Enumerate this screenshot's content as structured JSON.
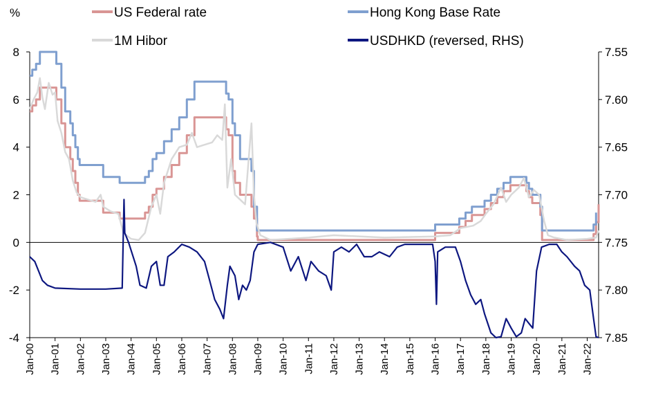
{
  "chart_data": {
    "type": "line",
    "left_axis_unit": "%",
    "left_axis": {
      "range": [
        -4,
        8
      ],
      "ticks": [
        "8",
        "6",
        "4",
        "2",
        "0",
        "-2",
        "-4"
      ]
    },
    "right_axis": {
      "range": [
        7.55,
        7.85
      ],
      "reversed": true,
      "ticks": [
        "7.55",
        "7.60",
        "7.65",
        "7.70",
        "7.75",
        "7.80",
        "7.85"
      ]
    },
    "x_ticks": [
      "Jan-00",
      "Jan-01",
      "Jan-02",
      "Jan-03",
      "Jan-04",
      "Jan-05",
      "Jan-06",
      "Jan-07",
      "Jan-08",
      "Jan-09",
      "Jan-10",
      "Jan-11",
      "Jan-12",
      "Jan-13",
      "Jan-14",
      "Jan-15",
      "Jan-16",
      "Jan-17",
      "Jan-18",
      "Jan-19",
      "Jan-20",
      "Jan-21",
      "Jan-22"
    ],
    "x_range": [
      2000.0,
      2022.45
    ],
    "grid": false,
    "legend": [
      {
        "name": "US Federal rate",
        "color": "#d99594"
      },
      {
        "name": "Hong Kong Base Rate",
        "color": "#7f9fcf"
      },
      {
        "name": "1M Hibor",
        "color": "#d9d9d9"
      },
      {
        "name": "USDHKD (reversed, RHS)",
        "color": "#0d1780"
      }
    ],
    "series": [
      {
        "name": "US Federal rate",
        "axis": "left",
        "color": "#d99594",
        "points": [
          [
            2000.0,
            5.5
          ],
          [
            2000.1,
            5.75
          ],
          [
            2000.25,
            6.0
          ],
          [
            2000.4,
            6.5
          ],
          [
            2001.0,
            6.5
          ],
          [
            2001.05,
            6.0
          ],
          [
            2001.25,
            5.0
          ],
          [
            2001.4,
            4.0
          ],
          [
            2001.6,
            3.5
          ],
          [
            2001.7,
            3.0
          ],
          [
            2001.8,
            2.5
          ],
          [
            2001.9,
            2.0
          ],
          [
            2001.97,
            1.75
          ],
          [
            2002.85,
            1.75
          ],
          [
            2002.9,
            1.25
          ],
          [
            2003.5,
            1.25
          ],
          [
            2003.55,
            1.0
          ],
          [
            2004.5,
            1.0
          ],
          [
            2004.55,
            1.25
          ],
          [
            2004.7,
            1.5
          ],
          [
            2004.85,
            2.0
          ],
          [
            2005.0,
            2.25
          ],
          [
            2005.3,
            2.75
          ],
          [
            2005.6,
            3.25
          ],
          [
            2005.9,
            3.75
          ],
          [
            2006.2,
            4.5
          ],
          [
            2006.5,
            5.25
          ],
          [
            2007.7,
            5.25
          ],
          [
            2007.75,
            4.75
          ],
          [
            2007.85,
            4.5
          ],
          [
            2008.0,
            3.0
          ],
          [
            2008.1,
            2.5
          ],
          [
            2008.3,
            2.0
          ],
          [
            2008.75,
            1.5
          ],
          [
            2008.85,
            1.0
          ],
          [
            2008.97,
            0.25
          ],
          [
            2009.0,
            0.1
          ],
          [
            2015.95,
            0.1
          ],
          [
            2016.0,
            0.4
          ],
          [
            2016.95,
            0.65
          ],
          [
            2017.2,
            0.9
          ],
          [
            2017.45,
            1.15
          ],
          [
            2017.95,
            1.4
          ],
          [
            2018.2,
            1.65
          ],
          [
            2018.45,
            1.9
          ],
          [
            2018.7,
            2.15
          ],
          [
            2018.97,
            2.4
          ],
          [
            2019.55,
            2.4
          ],
          [
            2019.6,
            2.15
          ],
          [
            2019.7,
            1.9
          ],
          [
            2019.83,
            1.65
          ],
          [
            2020.15,
            1.15
          ],
          [
            2020.22,
            0.1
          ],
          [
            2022.2,
            0.1
          ],
          [
            2022.25,
            0.35
          ],
          [
            2022.35,
            0.85
          ],
          [
            2022.45,
            1.6
          ]
        ]
      },
      {
        "name": "Hong Kong Base Rate",
        "axis": "left",
        "color": "#7f9fcf",
        "points": [
          [
            2000.0,
            7.0
          ],
          [
            2000.1,
            7.25
          ],
          [
            2000.25,
            7.5
          ],
          [
            2000.4,
            8.0
          ],
          [
            2001.0,
            8.0
          ],
          [
            2001.05,
            7.5
          ],
          [
            2001.25,
            6.5
          ],
          [
            2001.4,
            5.5
          ],
          [
            2001.6,
            5.0
          ],
          [
            2001.7,
            4.5
          ],
          [
            2001.8,
            4.0
          ],
          [
            2001.9,
            3.5
          ],
          [
            2001.97,
            3.25
          ],
          [
            2002.85,
            3.25
          ],
          [
            2002.9,
            2.75
          ],
          [
            2003.5,
            2.75
          ],
          [
            2003.55,
            2.5
          ],
          [
            2004.5,
            2.5
          ],
          [
            2004.55,
            2.75
          ],
          [
            2004.7,
            3.0
          ],
          [
            2004.85,
            3.5
          ],
          [
            2005.0,
            3.75
          ],
          [
            2005.3,
            4.25
          ],
          [
            2005.6,
            4.75
          ],
          [
            2005.9,
            5.25
          ],
          [
            2006.2,
            6.0
          ],
          [
            2006.5,
            6.75
          ],
          [
            2007.7,
            6.75
          ],
          [
            2007.75,
            6.25
          ],
          [
            2007.85,
            6.0
          ],
          [
            2008.0,
            5.0
          ],
          [
            2008.1,
            4.5
          ],
          [
            2008.3,
            3.5
          ],
          [
            2008.75,
            3.0
          ],
          [
            2008.85,
            1.5
          ],
          [
            2008.97,
            0.5
          ],
          [
            2015.95,
            0.5
          ],
          [
            2016.0,
            0.75
          ],
          [
            2016.95,
            1.0
          ],
          [
            2017.2,
            1.25
          ],
          [
            2017.45,
            1.5
          ],
          [
            2017.95,
            1.75
          ],
          [
            2018.2,
            2.0
          ],
          [
            2018.45,
            2.25
          ],
          [
            2018.7,
            2.5
          ],
          [
            2018.97,
            2.75
          ],
          [
            2019.55,
            2.75
          ],
          [
            2019.6,
            2.5
          ],
          [
            2019.7,
            2.25
          ],
          [
            2019.83,
            2.0
          ],
          [
            2020.15,
            1.5
          ],
          [
            2020.22,
            0.5
          ],
          [
            2022.2,
            0.5
          ],
          [
            2022.25,
            0.75
          ],
          [
            2022.35,
            1.25
          ]
        ]
      },
      {
        "name": "1M Hibor",
        "axis": "left",
        "color": "#d9d9d9",
        "points": [
          [
            2000.0,
            5.6
          ],
          [
            2000.15,
            6.0
          ],
          [
            2000.3,
            6.3
          ],
          [
            2000.4,
            6.9
          ],
          [
            2000.5,
            6.1
          ],
          [
            2000.6,
            5.6
          ],
          [
            2000.75,
            6.7
          ],
          [
            2000.9,
            6.2
          ],
          [
            2001.0,
            6.3
          ],
          [
            2001.1,
            5.1
          ],
          [
            2001.25,
            4.6
          ],
          [
            2001.4,
            3.8
          ],
          [
            2001.55,
            3.5
          ],
          [
            2001.7,
            2.6
          ],
          [
            2001.85,
            2.1
          ],
          [
            2002.0,
            1.9
          ],
          [
            2002.3,
            1.8
          ],
          [
            2002.6,
            1.7
          ],
          [
            2002.8,
            2.0
          ],
          [
            2002.9,
            1.5
          ],
          [
            2003.2,
            1.3
          ],
          [
            2003.5,
            1.2
          ],
          [
            2003.7,
            0.4
          ],
          [
            2004.0,
            0.15
          ],
          [
            2004.3,
            0.1
          ],
          [
            2004.55,
            0.4
          ],
          [
            2004.8,
            1.5
          ],
          [
            2005.0,
            2.0
          ],
          [
            2005.15,
            1.2
          ],
          [
            2005.3,
            2.5
          ],
          [
            2005.6,
            3.5
          ],
          [
            2005.9,
            4.0
          ],
          [
            2006.2,
            4.1
          ],
          [
            2006.4,
            4.6
          ],
          [
            2006.6,
            4.0
          ],
          [
            2006.9,
            4.1
          ],
          [
            2007.2,
            4.2
          ],
          [
            2007.4,
            4.5
          ],
          [
            2007.6,
            4.3
          ],
          [
            2007.7,
            5.8
          ],
          [
            2007.8,
            2.3
          ],
          [
            2007.95,
            3.5
          ],
          [
            2008.1,
            2.0
          ],
          [
            2008.3,
            1.8
          ],
          [
            2008.5,
            1.6
          ],
          [
            2008.75,
            5.0
          ],
          [
            2008.85,
            2.0
          ],
          [
            2008.95,
            0.8
          ],
          [
            2009.1,
            0.3
          ],
          [
            2009.5,
            0.1
          ],
          [
            2011.0,
            0.2
          ],
          [
            2012.0,
            0.3
          ],
          [
            2014.0,
            0.2
          ],
          [
            2016.0,
            0.25
          ],
          [
            2016.6,
            0.3
          ],
          [
            2017.0,
            0.6
          ],
          [
            2017.5,
            0.7
          ],
          [
            2017.8,
            0.9
          ],
          [
            2018.0,
            1.2
          ],
          [
            2018.3,
            1.6
          ],
          [
            2018.6,
            2.3
          ],
          [
            2018.8,
            1.7
          ],
          [
            2019.0,
            2.0
          ],
          [
            2019.3,
            2.3
          ],
          [
            2019.5,
            2.7
          ],
          [
            2019.7,
            1.9
          ],
          [
            2019.9,
            2.2
          ],
          [
            2020.1,
            2.0
          ],
          [
            2020.3,
            0.9
          ],
          [
            2020.45,
            0.3
          ],
          [
            2020.7,
            0.2
          ],
          [
            2021.2,
            0.1
          ],
          [
            2022.0,
            0.15
          ],
          [
            2022.35,
            0.2
          ],
          [
            2022.45,
            0.5
          ]
        ]
      },
      {
        "name": "USDHKD (reversed, RHS)",
        "axis": "right",
        "color": "#0d1780",
        "points": [
          [
            2000.0,
            7.765
          ],
          [
            2000.2,
            7.77
          ],
          [
            2000.5,
            7.79
          ],
          [
            2000.7,
            7.795
          ],
          [
            2001.0,
            7.798
          ],
          [
            2002.0,
            7.799
          ],
          [
            2003.0,
            7.799
          ],
          [
            2003.65,
            7.798
          ],
          [
            2003.72,
            7.705
          ],
          [
            2003.75,
            7.74
          ],
          [
            2003.9,
            7.75
          ],
          [
            2004.2,
            7.775
          ],
          [
            2004.35,
            7.795
          ],
          [
            2004.6,
            7.798
          ],
          [
            2004.8,
            7.775
          ],
          [
            2005.0,
            7.77
          ],
          [
            2005.15,
            7.795
          ],
          [
            2005.3,
            7.795
          ],
          [
            2005.45,
            7.765
          ],
          [
            2005.7,
            7.76
          ],
          [
            2006.0,
            7.752
          ],
          [
            2006.3,
            7.755
          ],
          [
            2006.6,
            7.76
          ],
          [
            2006.9,
            7.77
          ],
          [
            2007.1,
            7.79
          ],
          [
            2007.3,
            7.81
          ],
          [
            2007.5,
            7.82
          ],
          [
            2007.65,
            7.83
          ],
          [
            2007.8,
            7.795
          ],
          [
            2007.9,
            7.775
          ],
          [
            2008.1,
            7.785
          ],
          [
            2008.25,
            7.81
          ],
          [
            2008.4,
            7.795
          ],
          [
            2008.55,
            7.8
          ],
          [
            2008.7,
            7.79
          ],
          [
            2008.85,
            7.76
          ],
          [
            2009.0,
            7.752
          ],
          [
            2009.5,
            7.75
          ],
          [
            2010.0,
            7.755
          ],
          [
            2010.3,
            7.78
          ],
          [
            2010.6,
            7.765
          ],
          [
            2010.9,
            7.79
          ],
          [
            2011.1,
            7.77
          ],
          [
            2011.4,
            7.78
          ],
          [
            2011.7,
            7.785
          ],
          [
            2011.9,
            7.8
          ],
          [
            2012.0,
            7.76
          ],
          [
            2012.3,
            7.755
          ],
          [
            2012.6,
            7.76
          ],
          [
            2012.9,
            7.752
          ],
          [
            2013.2,
            7.765
          ],
          [
            2013.5,
            7.765
          ],
          [
            2013.8,
            7.76
          ],
          [
            2014.2,
            7.765
          ],
          [
            2014.5,
            7.755
          ],
          [
            2014.8,
            7.752
          ],
          [
            2015.2,
            7.752
          ],
          [
            2015.6,
            7.752
          ],
          [
            2015.9,
            7.752
          ],
          [
            2016.0,
            7.77
          ],
          [
            2016.05,
            7.815
          ],
          [
            2016.1,
            7.76
          ],
          [
            2016.4,
            7.755
          ],
          [
            2016.8,
            7.755
          ],
          [
            2017.0,
            7.77
          ],
          [
            2017.2,
            7.79
          ],
          [
            2017.4,
            7.805
          ],
          [
            2017.6,
            7.815
          ],
          [
            2017.8,
            7.81
          ],
          [
            2017.95,
            7.825
          ],
          [
            2018.2,
            7.845
          ],
          [
            2018.4,
            7.85
          ],
          [
            2018.6,
            7.849
          ],
          [
            2018.8,
            7.83
          ],
          [
            2019.0,
            7.84
          ],
          [
            2019.2,
            7.849
          ],
          [
            2019.4,
            7.845
          ],
          [
            2019.55,
            7.83
          ],
          [
            2019.7,
            7.835
          ],
          [
            2019.85,
            7.84
          ],
          [
            2020.0,
            7.78
          ],
          [
            2020.2,
            7.755
          ],
          [
            2020.5,
            7.752
          ],
          [
            2020.8,
            7.752
          ],
          [
            2021.0,
            7.76
          ],
          [
            2021.2,
            7.765
          ],
          [
            2021.5,
            7.775
          ],
          [
            2021.7,
            7.78
          ],
          [
            2021.9,
            7.795
          ],
          [
            2022.1,
            7.8
          ],
          [
            2022.25,
            7.83
          ],
          [
            2022.35,
            7.849
          ],
          [
            2022.45,
            7.85
          ]
        ]
      }
    ]
  }
}
